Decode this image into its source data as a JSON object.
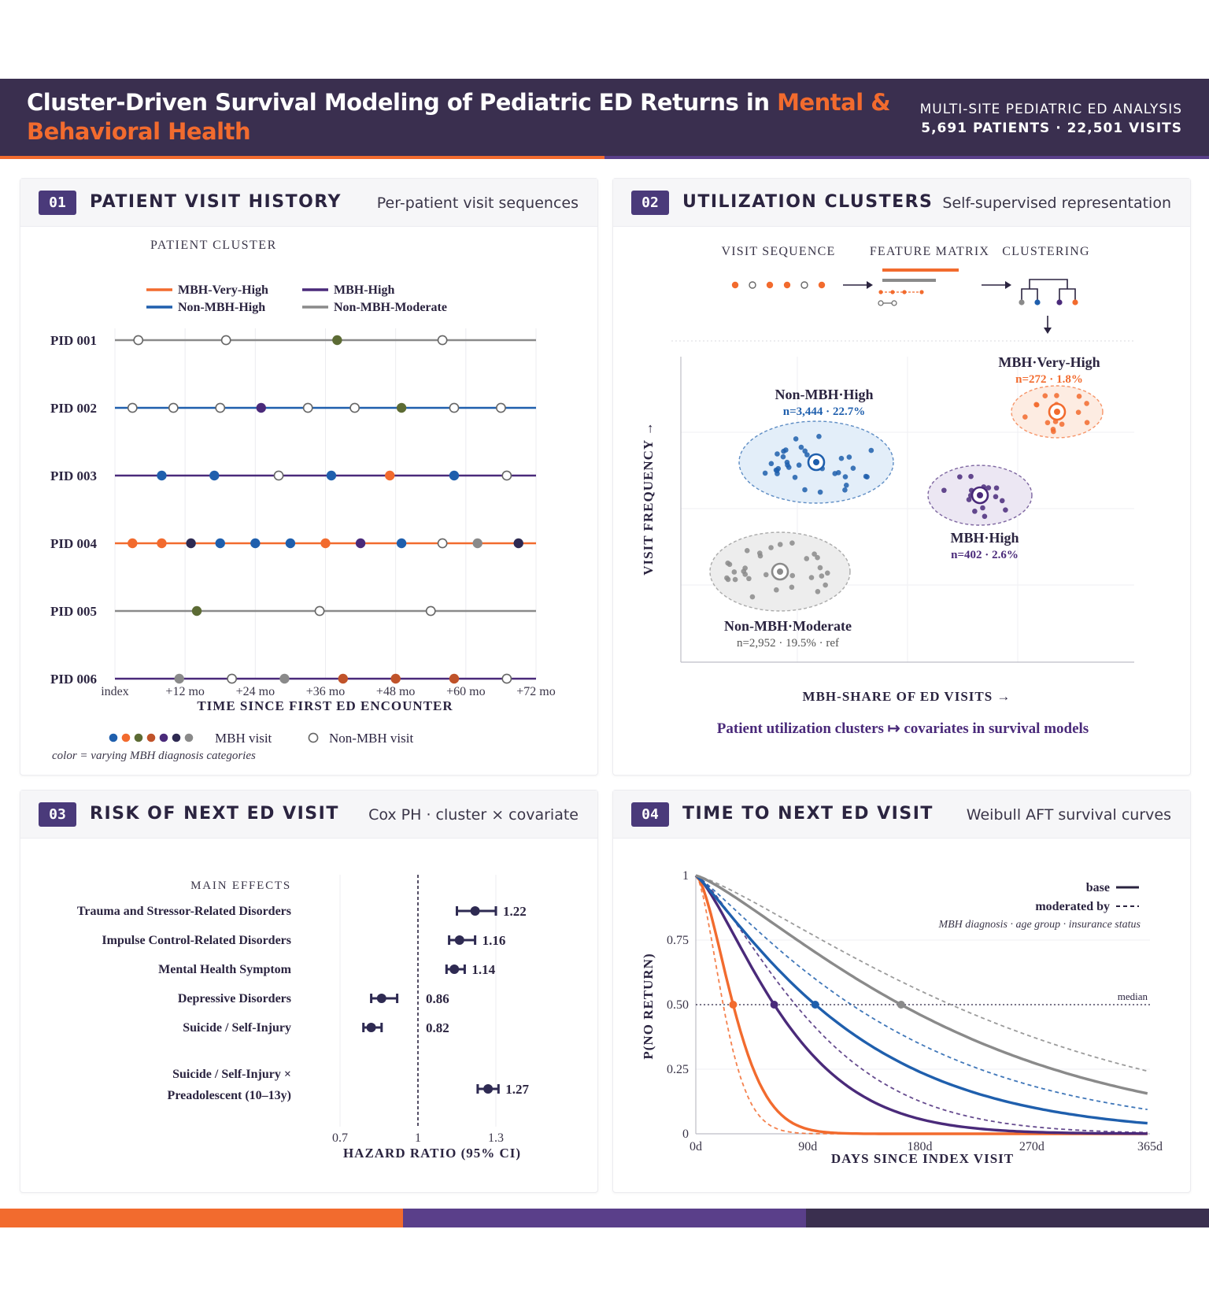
{
  "header": {
    "title_main": "Cluster-Driven Survival Modeling of Pediatric ED Returns in ",
    "title_highlight": "Mental & Behavioral Health",
    "meta_line1": "MULTI-SITE PEDIATRIC ED ANALYSIS",
    "meta_line2": "5,691 PATIENTS · 22,501 VISITS"
  },
  "colors": {
    "orange": "#f26b2e",
    "purple": "#4a2a7a",
    "blue": "#1f5fad",
    "gray": "#8a8a8a",
    "dark": "#2b2440",
    "green": "#5c6b34",
    "brown": "#c0532a",
    "navy": "#2e2a52"
  },
  "panel1": {
    "number": "01",
    "title": "PATIENT VISIT HISTORY",
    "subtitle": "Per-patient visit sequences",
    "legend_title": "PATIENT CLUSTER",
    "legend": [
      {
        "label": "MBH-Very-High",
        "color": "#f26b2e"
      },
      {
        "label": "MBH-High",
        "color": "#4a2a7a"
      },
      {
        "label": "Non-MBH-High",
        "color": "#1f5fad"
      },
      {
        "label": "Non-MBH-Moderate",
        "color": "#8a8a8a"
      }
    ],
    "chart_data": {
      "type": "scatter",
      "xlabel": "TIME SINCE FIRST ED ENCOUNTER",
      "x_ticks": [
        "index",
        "+12 mo",
        "+24 mo",
        "+36 mo",
        "+48 mo",
        "+60 mo",
        "+72 mo"
      ],
      "xlim": [
        0,
        72
      ],
      "patients": [
        {
          "pid": "PID 001",
          "line": "#8a8a8a",
          "visits": [
            {
              "t": 4,
              "mbh": false
            },
            {
              "t": 19,
              "mbh": false
            },
            {
              "t": 38,
              "mbh": true,
              "color": "#5c6b34"
            },
            {
              "t": 56,
              "mbh": false
            }
          ]
        },
        {
          "pid": "PID 002",
          "line": "#1f5fad",
          "visits": [
            {
              "t": 3,
              "mbh": false
            },
            {
              "t": 10,
              "mbh": false
            },
            {
              "t": 18,
              "mbh": false
            },
            {
              "t": 25,
              "mbh": true,
              "color": "#4a2a7a"
            },
            {
              "t": 33,
              "mbh": false
            },
            {
              "t": 41,
              "mbh": false
            },
            {
              "t": 49,
              "mbh": true,
              "color": "#5c6b34"
            },
            {
              "t": 58,
              "mbh": false
            },
            {
              "t": 66,
              "mbh": false
            }
          ]
        },
        {
          "pid": "PID 003",
          "line": "#4a2a7a",
          "visits": [
            {
              "t": 8,
              "mbh": true,
              "color": "#1f5fad"
            },
            {
              "t": 17,
              "mbh": true,
              "color": "#1f5fad"
            },
            {
              "t": 28,
              "mbh": false
            },
            {
              "t": 37,
              "mbh": true,
              "color": "#1f5fad"
            },
            {
              "t": 47,
              "mbh": true,
              "color": "#f26b2e"
            },
            {
              "t": 58,
              "mbh": true,
              "color": "#1f5fad"
            },
            {
              "t": 67,
              "mbh": false
            }
          ]
        },
        {
          "pid": "PID 004",
          "line": "#f26b2e",
          "visits": [
            {
              "t": 3,
              "mbh": true,
              "color": "#f26b2e"
            },
            {
              "t": 8,
              "mbh": true,
              "color": "#f26b2e"
            },
            {
              "t": 13,
              "mbh": true,
              "color": "#2e2a52"
            },
            {
              "t": 18,
              "mbh": true,
              "color": "#1f5fad"
            },
            {
              "t": 24,
              "mbh": true,
              "color": "#1f5fad"
            },
            {
              "t": 30,
              "mbh": true,
              "color": "#1f5fad"
            },
            {
              "t": 36,
              "mbh": true,
              "color": "#f26b2e"
            },
            {
              "t": 42,
              "mbh": true,
              "color": "#4a2a7a"
            },
            {
              "t": 49,
              "mbh": true,
              "color": "#1f5fad"
            },
            {
              "t": 56,
              "mbh": false
            },
            {
              "t": 62,
              "mbh": true,
              "color": "#8a8a8a"
            },
            {
              "t": 69,
              "mbh": true,
              "color": "#2e2a52"
            }
          ]
        },
        {
          "pid": "PID 005",
          "line": "#8a8a8a",
          "visits": [
            {
              "t": 14,
              "mbh": true,
              "color": "#5c6b34"
            },
            {
              "t": 35,
              "mbh": false
            },
            {
              "t": 54,
              "mbh": false
            }
          ]
        },
        {
          "pid": "PID 006",
          "line": "#4a2a7a",
          "visits": [
            {
              "t": 11,
              "mbh": true,
              "color": "#8a8a8a"
            },
            {
              "t": 20,
              "mbh": false
            },
            {
              "t": 29,
              "mbh": true,
              "color": "#8a8a8a"
            },
            {
              "t": 39,
              "mbh": true,
              "color": "#c0532a"
            },
            {
              "t": 48,
              "mbh": true,
              "color": "#c0532a"
            },
            {
              "t": 58,
              "mbh": true,
              "color": "#c0532a"
            },
            {
              "t": 67,
              "mbh": false
            }
          ]
        }
      ]
    },
    "key_mbh": "MBH visit",
    "key_non_mbh": "Non-MBH visit",
    "key_colors": [
      "#1f5fad",
      "#f26b2e",
      "#5c6b34",
      "#c0532a",
      "#4a2a7a",
      "#2e2a52",
      "#8a8a8a"
    ],
    "note": "color = varying MBH diagnosis categories"
  },
  "panel2": {
    "number": "02",
    "title": "UTILIZATION CLUSTERS",
    "subtitle": "Self-supervised representation",
    "pipeline": [
      "VISIT SEQUENCE",
      "FEATURE MATRIX",
      "CLUSTERING"
    ],
    "xlabel": "MBH-SHARE OF ED VISITS →",
    "ylabel": "VISIT FREQUENCY →",
    "caption": "Patient utilization clusters ↦ covariates in survival models",
    "clusters": [
      {
        "name": "Non-MBH·High",
        "stat": "n=3,444 · 22.7%",
        "color": "#1f5fad",
        "fill": "#e3eef9"
      },
      {
        "name": "MBH·Very-High",
        "stat": "n=272 · 1.8%",
        "color": "#f26b2e",
        "fill": "#fdece2"
      },
      {
        "name": "MBH·High",
        "stat": "n=402 · 2.6%",
        "color": "#4a2a7a",
        "fill": "#ece7f3"
      },
      {
        "name": "Non-MBH·Moderate",
        "stat": "n=2,952 · 19.5% · ref",
        "color": "#8a8a8a",
        "fill": "#ededed"
      }
    ]
  },
  "panel3": {
    "number": "03",
    "title": "RISK OF NEXT ED VISIT",
    "subtitle": "Cox PH · cluster × covariate",
    "section_label": "MAIN EFFECTS",
    "chart_data": {
      "type": "forest",
      "xlabel": "HAZARD RATIO (95% CI)",
      "x_ticks": [
        0.7,
        1,
        1.3
      ],
      "xlim": [
        0.7,
        1.3
      ],
      "reference": 1,
      "rows": [
        {
          "label": "Trauma and Stressor-Related Disorders",
          "hr": 1.22,
          "lo": 1.15,
          "hi": 1.3,
          "hr_label": "1.22"
        },
        {
          "label": "Impulse Control-Related Disorders",
          "hr": 1.16,
          "lo": 1.12,
          "hi": 1.22,
          "hr_label": "1.16"
        },
        {
          "label": "Mental Health Symptom",
          "hr": 1.14,
          "lo": 1.11,
          "hi": 1.18,
          "hr_label": "1.14"
        },
        {
          "label": "Depressive Disorders",
          "hr": 0.86,
          "lo": 0.82,
          "hi": 0.92,
          "hr_label": "0.86"
        },
        {
          "label": "Suicide / Self-Injury",
          "hr": 0.82,
          "lo": 0.79,
          "hi": 0.86,
          "hr_label": "0.82"
        }
      ],
      "interaction": {
        "label_line1": "Suicide / Self-Injury ×",
        "label_line2": "Preadolescent (10–13y)",
        "hr": 1.27,
        "lo": 1.23,
        "hi": 1.31,
        "hr_label": "1.27"
      }
    }
  },
  "panel4": {
    "number": "04",
    "title": "TIME TO NEXT ED VISIT",
    "subtitle": "Weibull AFT survival curves",
    "chart_data": {
      "type": "line",
      "xlabel": "DAYS SINCE INDEX VISIT",
      "ylabel": "P(NO RETURN)",
      "x_ticks": [
        "0d",
        "90d",
        "180d",
        "270d",
        "365d"
      ],
      "x_tick_values": [
        0,
        90,
        180,
        270,
        365
      ],
      "y_ticks": [
        "0",
        "0.25",
        "0.50",
        "0.75",
        "1"
      ],
      "y_tick_values": [
        0,
        0.25,
        0.5,
        0.75,
        1
      ],
      "xlim": [
        0,
        365
      ],
      "ylim": [
        0,
        1
      ],
      "median_label": "median",
      "legend_base": "base",
      "legend_moderated": "moderated by",
      "legend_note": "MBH diagnosis · age group · insurance status",
      "series": [
        {
          "color": "#f26b2e",
          "median_day": 30,
          "shape": 1.6,
          "moderated_median_day": 22
        },
        {
          "color": "#4a2a7a",
          "median_day": 63,
          "shape": 1.35,
          "moderated_median_day": 80
        },
        {
          "color": "#1f5fad",
          "median_day": 96,
          "shape": 1.15,
          "moderated_median_day": 125
        },
        {
          "color": "#8a8a8a",
          "median_day": 165,
          "shape": 1.25,
          "moderated_median_day": 205
        }
      ]
    }
  }
}
